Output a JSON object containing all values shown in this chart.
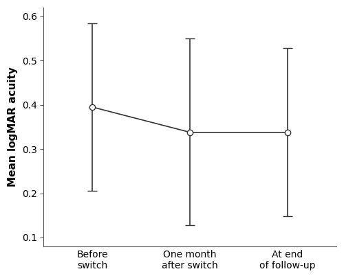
{
  "x_positions": [
    1,
    2,
    3
  ],
  "x_labels": [
    "Before\nswitch",
    "One month\nafter switch",
    "At end\nof follow-up"
  ],
  "means": [
    0.395,
    0.338,
    0.338
  ],
  "lower_errors": [
    0.19,
    0.21,
    0.19
  ],
  "upper_errors": [
    0.19,
    0.212,
    0.19
  ],
  "lower_bounds": [
    0.205,
    0.128,
    0.148
  ],
  "upper_bounds": [
    0.585,
    0.55,
    0.528
  ],
  "ylabel": "Mean logMAR acuity",
  "ylim": [
    0.08,
    0.62
  ],
  "yticks": [
    0.1,
    0.2,
    0.3,
    0.4,
    0.5,
    0.6
  ],
  "line_color": "#333333",
  "marker_color": "#ffffff",
  "marker_edge_color": "#333333",
  "background_color": "#ffffff",
  "marker_size": 6,
  "line_width": 1.2,
  "capsize": 5
}
